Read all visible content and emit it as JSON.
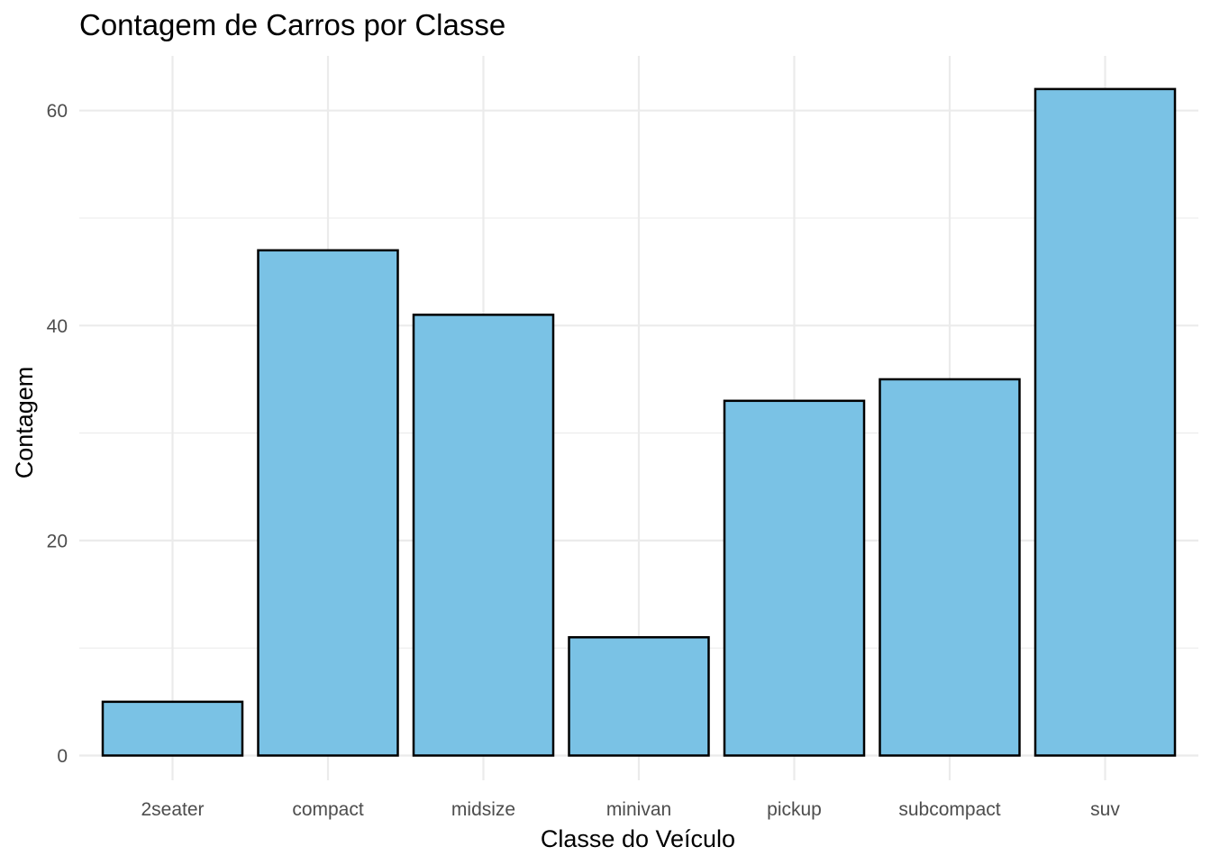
{
  "chart_data": {
    "type": "bar",
    "title": "Contagem de Carros por Classe",
    "xlabel": "Classe do Veículo",
    "ylabel": "Contagem",
    "categories": [
      "2seater",
      "compact",
      "midsize",
      "minivan",
      "pickup",
      "subcompact",
      "suv"
    ],
    "values": [
      5,
      47,
      41,
      11,
      33,
      35,
      62
    ],
    "ylim": [
      0,
      65
    ],
    "yticks": [
      0,
      20,
      40,
      60
    ],
    "grid": true,
    "legend": "none",
    "colors": {
      "bar_fill": "#7AC2E5",
      "bar_outline": "#000000",
      "grid": "#EBEBEB",
      "tick_text": "#4D4D4D"
    }
  }
}
